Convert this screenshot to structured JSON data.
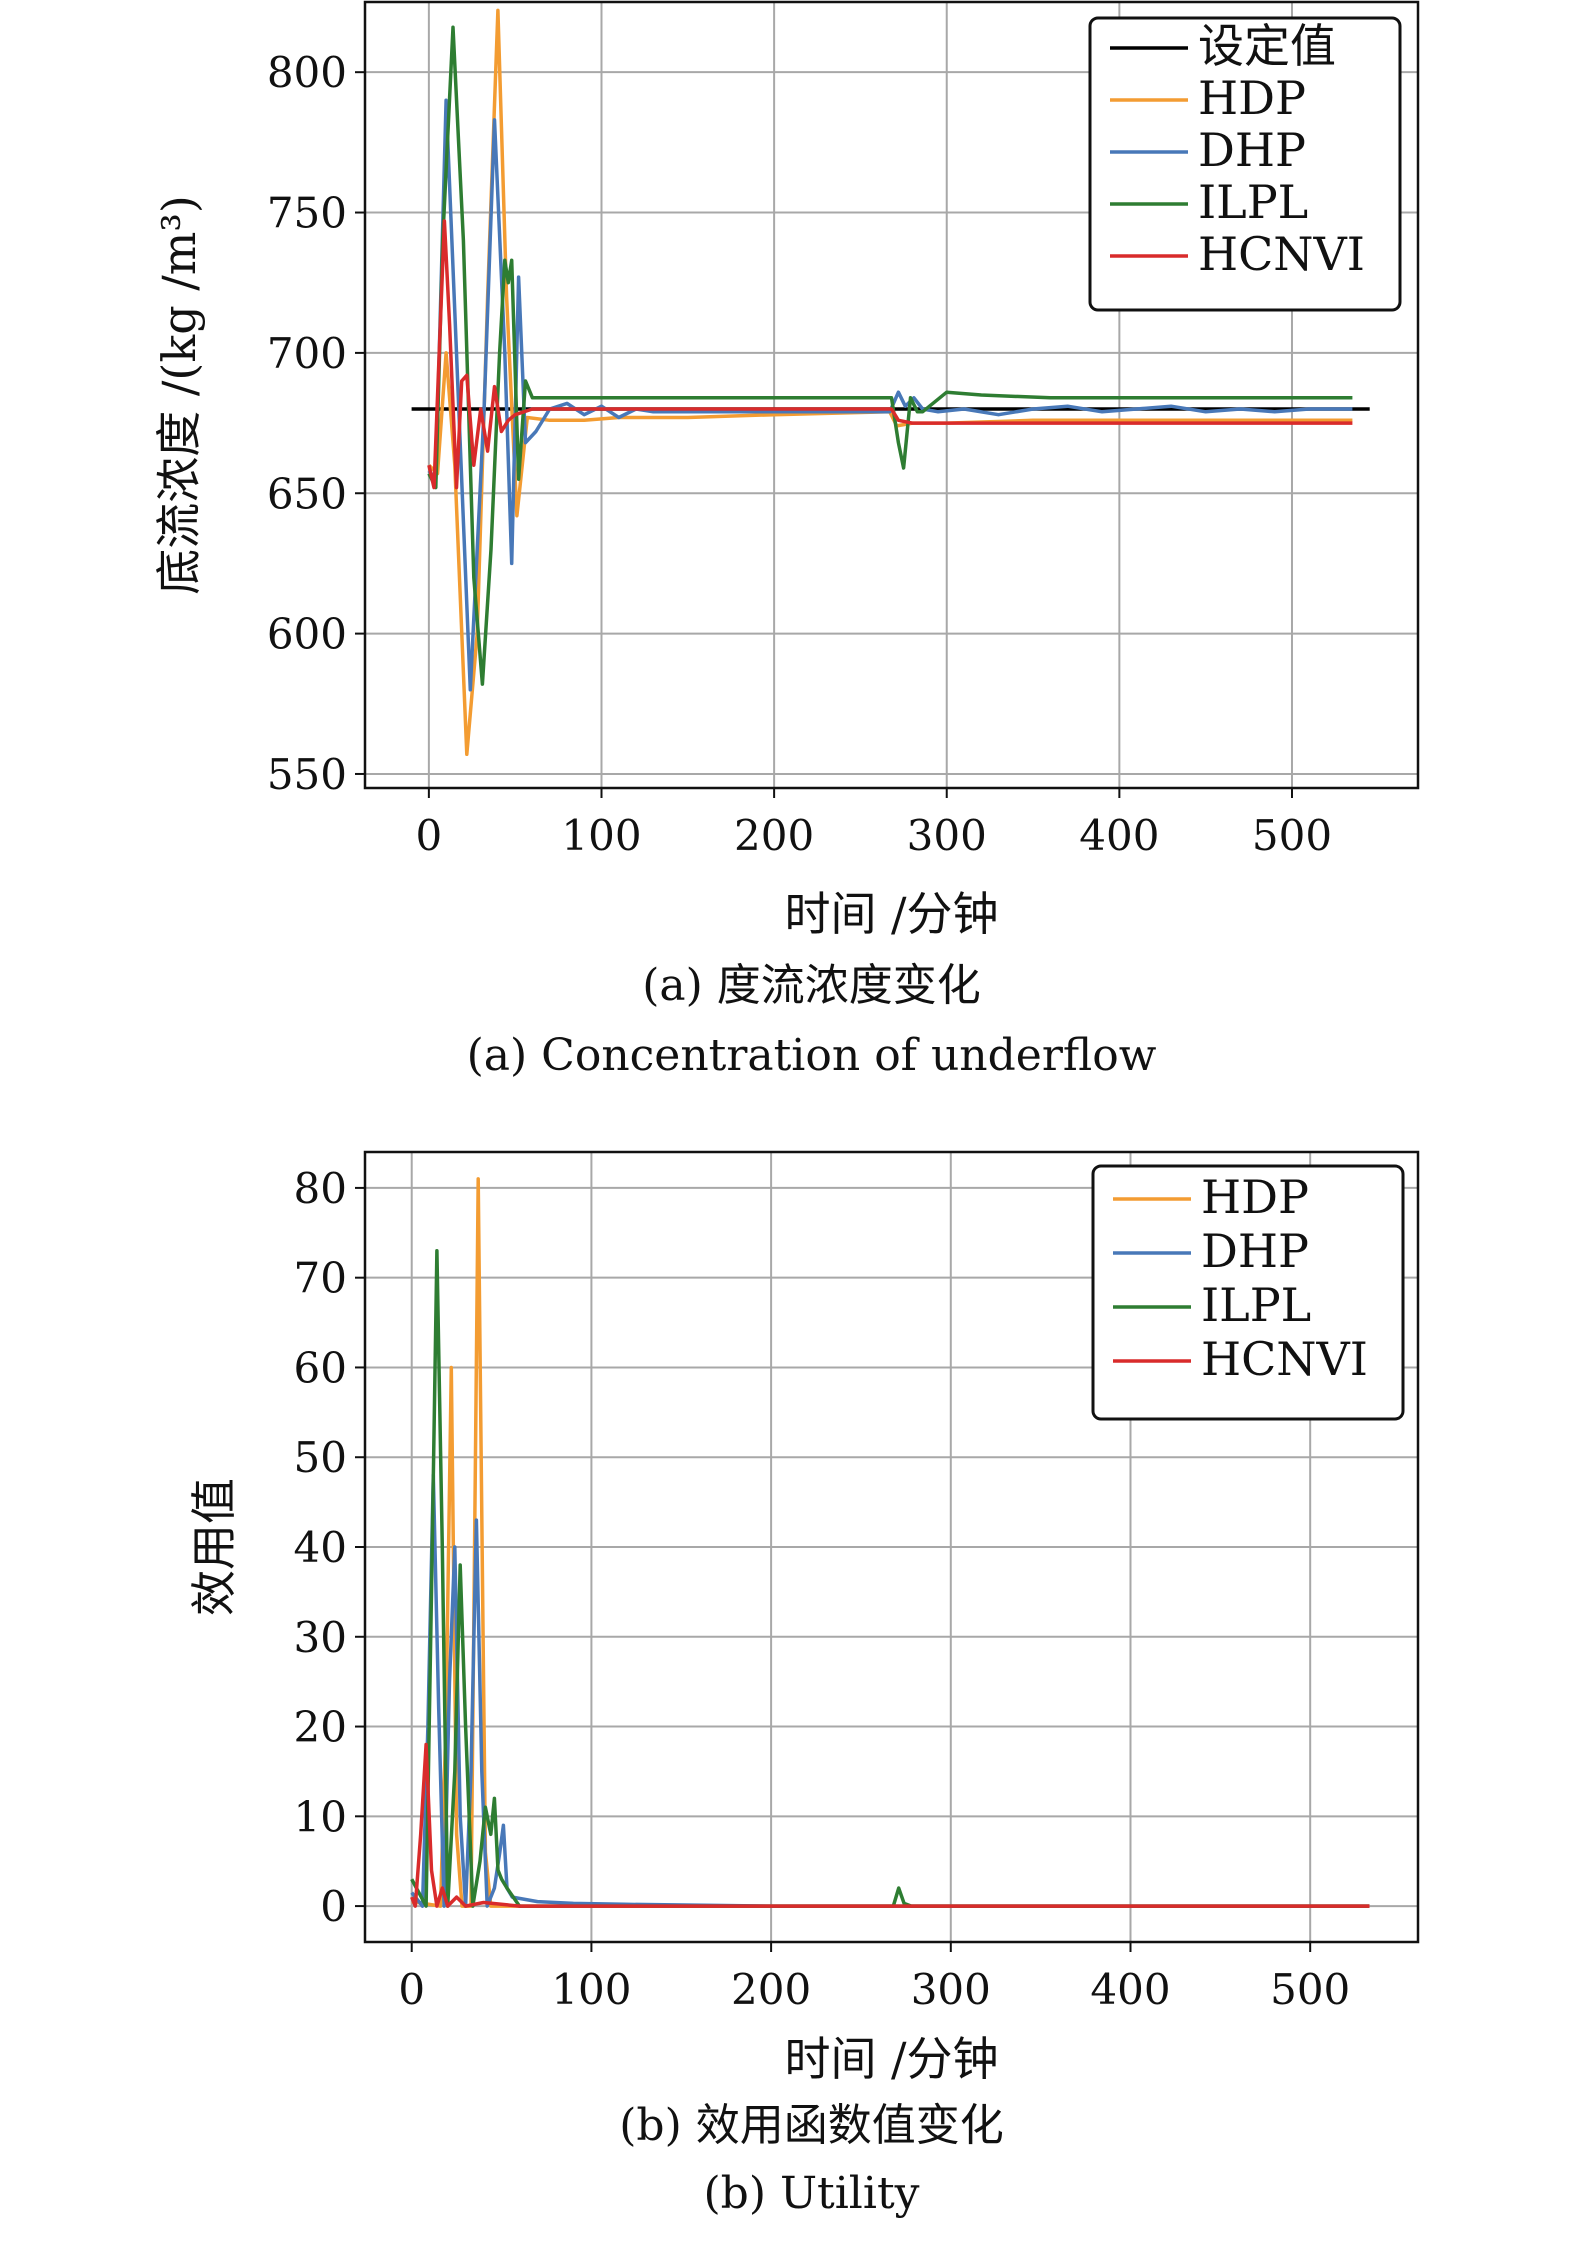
{
  "chart_data": [
    {
      "type": "line",
      "caption_cn": "(a) 度流浓度变化",
      "caption_en": "(a) Concentration of underflow",
      "xlabel": "时间 /分钟",
      "ylabel": "底流浓度 /(kg /m³)",
      "xlim": [
        -37,
        573
      ],
      "ylim": [
        545,
        825
      ],
      "xticks": [
        0,
        100,
        200,
        300,
        400,
        500
      ],
      "yticks": [
        550,
        600,
        650,
        700,
        750,
        800
      ],
      "grid": true,
      "legend_position": "top-right",
      "series": [
        {
          "name": "设定值",
          "color": "#000000",
          "x": [
            -10,
            545
          ],
          "y": [
            680,
            680
          ]
        },
        {
          "name": "HDP",
          "color": "#f39c32",
          "x": [
            0,
            5,
            10,
            15,
            22,
            28,
            34,
            40,
            45,
            51,
            57,
            70,
            90,
            110,
            130,
            150,
            200,
            267,
            271,
            280,
            300,
            350,
            400,
            450,
            535
          ],
          "y": [
            660,
            657,
            700,
            660,
            557,
            600,
            720,
            822,
            720,
            642,
            677,
            676,
            676,
            677,
            677,
            677,
            678,
            679,
            674,
            675,
            675,
            676,
            676,
            676,
            676
          ]
        },
        {
          "name": "DHP",
          "color": "#4878b8",
          "x": [
            0,
            4,
            10,
            16,
            24,
            32,
            38,
            44,
            48,
            52,
            56,
            62,
            70,
            80,
            90,
            100,
            110,
            120,
            130,
            150,
            200,
            267,
            272,
            276,
            281,
            286,
            295,
            310,
            330,
            350,
            370,
            390,
            410,
            430,
            450,
            470,
            490,
            510,
            535
          ],
          "y": [
            658,
            655,
            790,
            700,
            580,
            680,
            783,
            700,
            625,
            727,
            668,
            672,
            680,
            682,
            678,
            681,
            677,
            680,
            679,
            679,
            679,
            679,
            686,
            681,
            684,
            680,
            679,
            680,
            678,
            680,
            681,
            679,
            680,
            681,
            679,
            680,
            679,
            680,
            680
          ]
        },
        {
          "name": "ILPL",
          "color": "#2e7d32",
          "x": [
            0,
            4,
            8,
            14,
            20,
            26,
            31,
            36,
            41,
            44,
            46,
            48,
            52,
            56,
            60,
            100,
            200,
            268,
            272,
            275,
            279,
            283,
            286,
            290,
            300,
            320,
            360,
            400,
            450,
            535
          ],
          "y": [
            657,
            652,
            740,
            816,
            740,
            620,
            582,
            630,
            700,
            733,
            725,
            733,
            655,
            690,
            684,
            684,
            684,
            684,
            668,
            659,
            684,
            679,
            679,
            681,
            686,
            685,
            684,
            684,
            684,
            684
          ]
        },
        {
          "name": "HCNVI",
          "color": "#d92b2b",
          "x": [
            0,
            3,
            6,
            9,
            12,
            16,
            19,
            22,
            26,
            30,
            34,
            38,
            42,
            46,
            50,
            60,
            80,
            100,
            200,
            268,
            272,
            280,
            300,
            400,
            535
          ],
          "y": [
            660,
            652,
            700,
            747,
            710,
            652,
            690,
            692,
            660,
            680,
            665,
            688,
            672,
            676,
            678,
            680,
            680,
            680,
            680,
            680,
            676,
            675,
            675,
            675,
            675
          ]
        }
      ]
    },
    {
      "type": "line",
      "caption_cn": "(b) 效用函数值变化",
      "caption_en": "(b) Utility",
      "xlabel": "时间 /分钟",
      "ylabel": "效用值",
      "xlim": [
        -26,
        560
      ],
      "ylim": [
        -4,
        84
      ],
      "xticks": [
        0,
        100,
        200,
        300,
        400,
        500
      ],
      "yticks": [
        0,
        10,
        20,
        30,
        40,
        50,
        60,
        70,
        80
      ],
      "grid": true,
      "legend_position": "top-right",
      "series": [
        {
          "name": "HDP",
          "color": "#f39c32",
          "x": [
            0,
            16,
            19,
            22,
            25,
            28,
            33,
            37,
            41,
            44,
            50,
            60,
            118,
            200,
            300,
            400,
            533
          ],
          "y": [
            0.5,
            0,
            20,
            60,
            8,
            0,
            0,
            81,
            6,
            0,
            0,
            0,
            0,
            0,
            0,
            0,
            0
          ]
        },
        {
          "name": "DHP",
          "color": "#4878b8",
          "x": [
            0,
            6,
            9,
            12,
            15,
            18,
            21,
            24,
            27,
            30,
            33,
            36,
            39,
            42,
            46,
            49,
            51,
            53,
            56,
            70,
            90,
            118,
            200,
            300,
            400,
            533
          ],
          "y": [
            1.5,
            0,
            20,
            48,
            22,
            0,
            25,
            40,
            10,
            0,
            15,
            43,
            15,
            0,
            2,
            6,
            9,
            2,
            1,
            0.5,
            0.3,
            0.2,
            0,
            0,
            0,
            0
          ]
        },
        {
          "name": "ILPL",
          "color": "#2e7d32",
          "x": [
            0,
            8,
            11,
            14,
            17,
            20,
            24,
            27,
            30,
            34,
            38,
            41,
            44,
            46,
            48,
            50,
            53,
            60,
            200,
            268,
            271,
            274,
            278,
            533
          ],
          "y": [
            3,
            0,
            35,
            73,
            40,
            0,
            15,
            38,
            20,
            0,
            5,
            11,
            8,
            12,
            4,
            3,
            2,
            0,
            0,
            0,
            2,
            0.3,
            0,
            0
          ]
        },
        {
          "name": "HCNVI",
          "color": "#d92b2b",
          "x": [
            0,
            2,
            5,
            8,
            11,
            14,
            17,
            20,
            25,
            30,
            40,
            60,
            100,
            200,
            300,
            400,
            533
          ],
          "y": [
            1,
            0,
            8,
            18,
            4,
            0,
            2,
            0,
            1,
            0,
            0.4,
            0,
            0,
            0,
            0,
            0,
            0
          ]
        }
      ]
    }
  ]
}
